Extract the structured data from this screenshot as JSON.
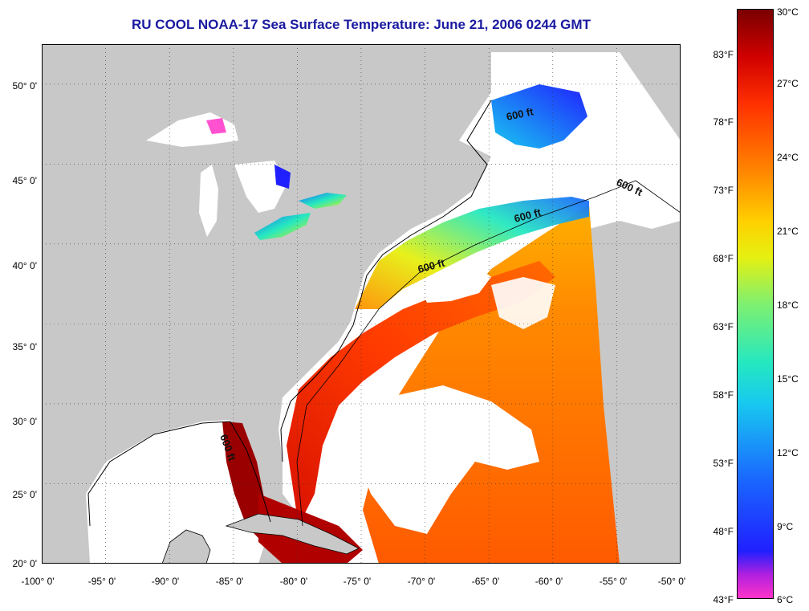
{
  "title": "RU COOL  NOAA-17  Sea Surface Temperature:  June 21, 2006 0244 GMT",
  "map": {
    "projection": "equirectangular",
    "lon_range": [
      -100,
      -50
    ],
    "lat_range": [
      20,
      52.5
    ],
    "lat_ticks": [
      "50° 0'",
      "45° 0'",
      "40° 0'",
      "35° 0'",
      "30° 0'",
      "25° 0'",
      "20° 0'"
    ],
    "lon_ticks": [
      "-100° 0'",
      "-95° 0'",
      "-90° 0'",
      "-85° 0'",
      "-80° 0'",
      "-75° 0'",
      "-70° 0'",
      "-65° 0'",
      "-60° 0'",
      "-55° 0'",
      "-50° 0'"
    ],
    "contour_labels": [
      "600 ft",
      "600 ft",
      "600 ft",
      "600 ft",
      "600 ft"
    ],
    "colors": {
      "land": "#c8c8c8",
      "cloud": "#ffffff",
      "coast": "#000000"
    }
  },
  "colorbar": {
    "fahrenheit_labels": [
      "83°F",
      "78°F",
      "73°F",
      "68°F",
      "63°F",
      "58°F",
      "53°F",
      "48°F",
      "43°F"
    ],
    "celsius_labels": [
      "30°C",
      "27°C",
      "24°C",
      "21°C",
      "18°C",
      "15°C",
      "12°C",
      "9°C",
      "6°C"
    ],
    "range_c": [
      6,
      30
    ],
    "colors": [
      "#ff33c8",
      "#b020e0",
      "#2020ff",
      "#18c8f0",
      "#7ff070",
      "#e6f010",
      "#ff8a00",
      "#ff3000",
      "#7a0000"
    ]
  }
}
